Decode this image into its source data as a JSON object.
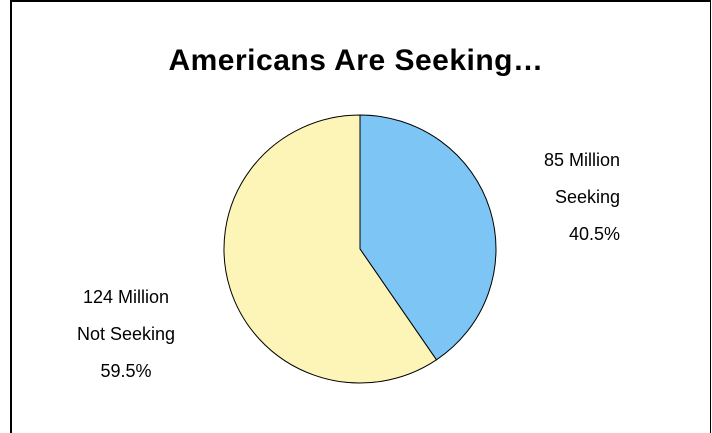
{
  "chart_data": {
    "type": "pie",
    "title": "Americans Are Seeking…",
    "slices": [
      {
        "label_lines": [
          "85 Million",
          "Seeking",
          "40.5%"
        ],
        "value": 85,
        "percent": 40.5,
        "color": "#7cc5f5"
      },
      {
        "label_lines": [
          "124 Million",
          "Not Seeking",
          "59.5%"
        ],
        "value": 124,
        "percent": 59.5,
        "color": "#fdf5b8"
      }
    ],
    "start_angle_deg": 0,
    "direction": "clockwise",
    "legend": "none"
  }
}
